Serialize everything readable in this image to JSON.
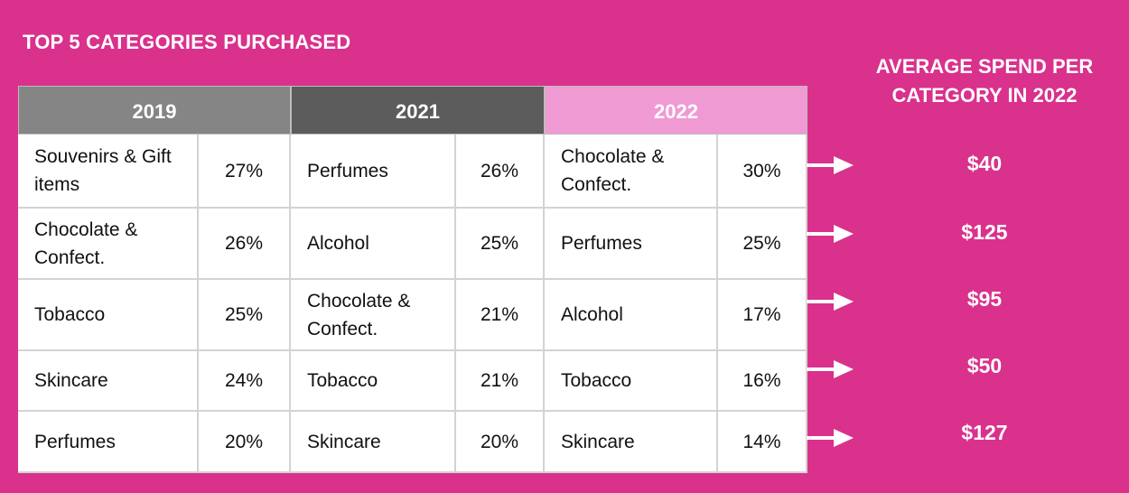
{
  "title": "TOP 5 CATEGORIES PURCHASED",
  "right_title_line1": "AVERAGE SPEND PER",
  "right_title_line2": "CATEGORY IN 2022",
  "colors": {
    "background": "#d9318c",
    "header_2019": "#858585",
    "header_2021": "#5c5c5c",
    "header_2022": "#f09ad3"
  },
  "chart_data": {
    "type": "table",
    "title": "TOP 5 CATEGORIES PURCHASED",
    "columns": [
      "2019",
      "2021",
      "2022"
    ],
    "rows": [
      [
        {
          "category": "Souvenirs & Gift items",
          "share": "27%"
        },
        {
          "category": "Perfumes",
          "share": "26%"
        },
        {
          "category": "Chocolate & Confect.",
          "share": "30%"
        }
      ],
      [
        {
          "category": "Chocolate & Confect.",
          "share": "26%"
        },
        {
          "category": "Alcohol",
          "share": "25%"
        },
        {
          "category": "Perfumes",
          "share": "25%"
        }
      ],
      [
        {
          "category": "Tobacco",
          "share": "25%"
        },
        {
          "category": "Chocolate & Confect.",
          "share": "21%"
        },
        {
          "category": "Alcohol",
          "share": "17%"
        }
      ],
      [
        {
          "category": "Skincare",
          "share": "24%"
        },
        {
          "category": "Tobacco",
          "share": "21%"
        },
        {
          "category": "Tobacco",
          "share": "16%"
        }
      ],
      [
        {
          "category": "Perfumes",
          "share": "20%"
        },
        {
          "category": "Skincare",
          "share": "20%"
        },
        {
          "category": "Skincare",
          "share": "14%"
        }
      ]
    ],
    "average_spend_title": "AVERAGE SPEND PER CATEGORY IN 2022",
    "average_spend_2022": [
      "$40",
      "$125",
      "$95",
      "$50",
      "$127"
    ]
  }
}
